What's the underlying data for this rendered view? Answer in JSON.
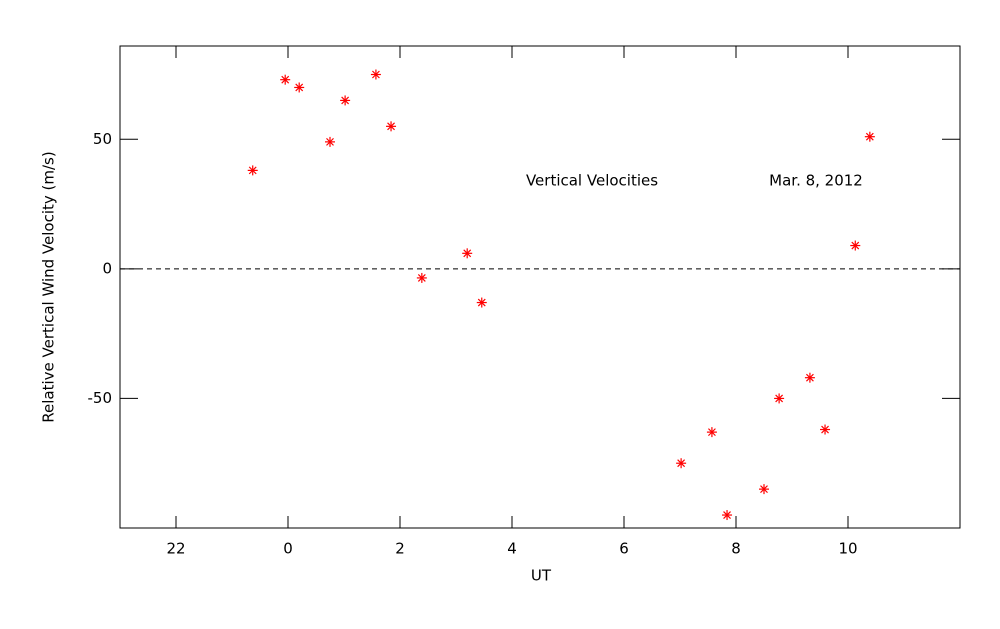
{
  "chart_data": {
    "type": "scatter",
    "x_label": "UT",
    "y_label": "Relative Vertical Wind Velocity (m/s)",
    "annotations": [
      "Vertical Velocities",
      "Mar. 8, 2012"
    ],
    "xlim": [
      -3,
      12
    ],
    "xticks": [
      {
        "value": -2,
        "label": "22"
      },
      0,
      2,
      4,
      6,
      8,
      10
    ],
    "ylim": [
      -100,
      86
    ],
    "yticks": [
      -50,
      0,
      50
    ],
    "hline": 0,
    "series": [
      {
        "color": "#ff0000",
        "x": [
          -0.63,
          -0.05,
          0.2,
          0.75,
          1.02,
          1.57,
          1.84,
          2.39,
          3.2,
          3.46,
          7.02,
          7.57,
          7.84,
          8.5,
          8.77,
          9.32,
          9.59,
          10.13,
          10.39
        ],
        "values": [
          38,
          73,
          70,
          49,
          65,
          75,
          55,
          -3.5,
          6,
          -13,
          -75,
          -63,
          -95,
          -85,
          -50,
          -42,
          -62,
          9,
          51
        ]
      }
    ]
  }
}
